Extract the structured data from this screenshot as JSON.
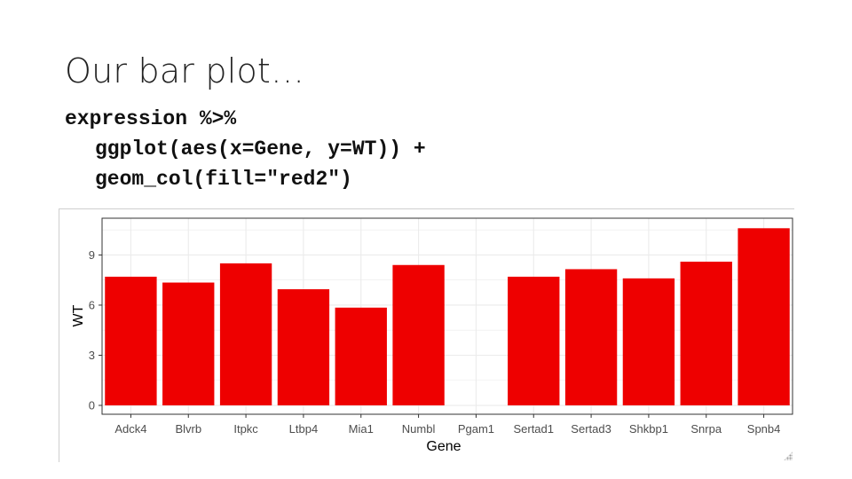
{
  "slide": {
    "title": "Our bar plot…",
    "code_lines": [
      "expression %>%",
      "ggplot(aes(x=Gene, y=WT)) +",
      "geom_col(fill=\"red2\")"
    ]
  },
  "colors": {
    "bar_fill": "#ee0000",
    "grid": "#ebebeb",
    "panel_border": "#333333",
    "tick_text": "#4d4d4d",
    "axis_title": "#000000"
  },
  "chart_data": {
    "type": "bar",
    "categories": [
      "Adck4",
      "Blvrb",
      "Itpkc",
      "Ltbp4",
      "Mia1",
      "Numbl",
      "Pgam1",
      "Sertad1",
      "Sertad3",
      "Shkbp1",
      "Snrpa",
      "Spnb4"
    ],
    "values": [
      7.7,
      7.35,
      8.5,
      6.95,
      5.85,
      8.4,
      0,
      7.7,
      8.15,
      7.6,
      8.6,
      10.6
    ],
    "xlabel": "Gene",
    "ylabel": "WT",
    "yticks": [
      0,
      3,
      6,
      9
    ],
    "ylim": [
      -0.53,
      11.2
    ],
    "grid": true,
    "bar_fill": "red2"
  }
}
